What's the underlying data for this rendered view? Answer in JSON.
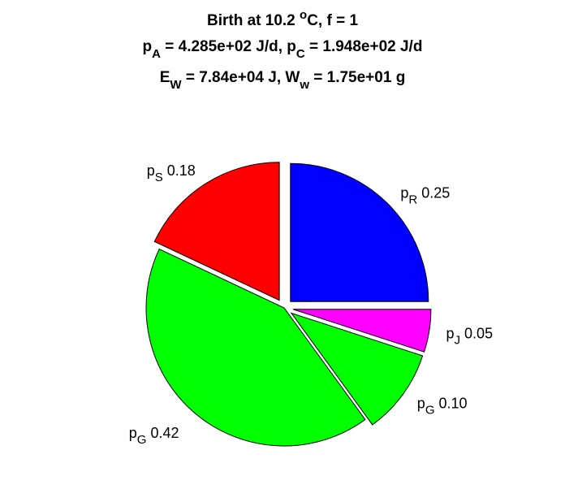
{
  "chart_data": {
    "type": "pie",
    "title": [
      {
        "parts": [
          [
            "Birth at 10.2 ",
            ""
          ],
          [
            "o",
            "sup"
          ],
          [
            "C, f = 1",
            ""
          ]
        ]
      },
      {
        "parts": [
          [
            "p",
            ""
          ],
          [
            "A",
            "sub"
          ],
          [
            " = 4.285e+02 J/d, p",
            ""
          ],
          [
            "C",
            "sub"
          ],
          [
            " = 1.948e+02 J/d",
            ""
          ]
        ]
      },
      {
        "parts": [
          [
            "E",
            ""
          ],
          [
            "W",
            "sub"
          ],
          [
            " = 7.84e+04 J, W",
            ""
          ],
          [
            "w",
            "sub"
          ],
          [
            " = 1.75e+01 g",
            ""
          ]
        ]
      }
    ],
    "slices": [
      {
        "symbol": "p",
        "subscript": "R",
        "value": 0.25,
        "value_label": "0.25",
        "color": "#0000ff",
        "exploded": true
      },
      {
        "symbol": "p",
        "subscript": "J",
        "value": 0.05,
        "value_label": "0.05",
        "color": "#ff00ff",
        "exploded": true
      },
      {
        "symbol": "p",
        "subscript": "G",
        "value": 0.1,
        "value_label": "0.10",
        "color": "#00ff00",
        "exploded": true
      },
      {
        "symbol": "p",
        "subscript": "G",
        "value": 0.42,
        "value_label": "0.42",
        "color": "#00ff00",
        "exploded": false
      },
      {
        "symbol": "p",
        "subscript": "S",
        "value": 0.18,
        "value_label": "0.18",
        "color": "#ff0000",
        "exploded": true
      }
    ],
    "direction": "clockwise",
    "start": "top"
  }
}
